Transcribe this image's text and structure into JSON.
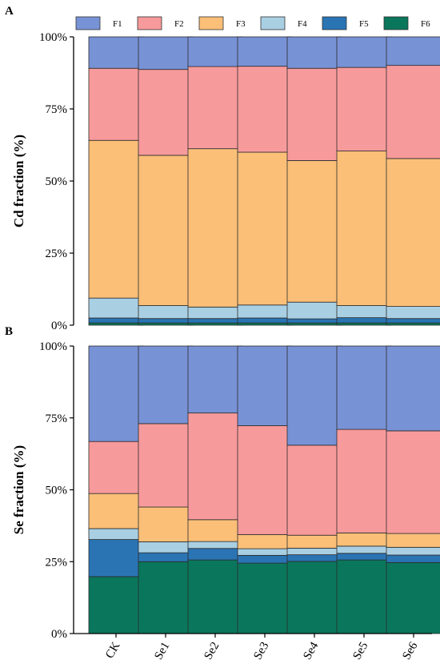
{
  "colors": {
    "F1": "#7892d6",
    "F2": "#f79a9b",
    "F3": "#fbbf78",
    "F4": "#a9cfe3",
    "F5": "#2a74b4",
    "F6": "#0a765c"
  },
  "legend": [
    "F1",
    "F2",
    "F3",
    "F4",
    "F5",
    "F6"
  ],
  "chart_data": [
    {
      "type": "bar",
      "stacked": true,
      "panel": "A",
      "ylabel": "Cd fraction (%)",
      "ylim": [
        0,
        100
      ],
      "yticks": [
        "0%",
        "25%",
        "50%",
        "75%",
        "100%"
      ],
      "categories": [
        "CK",
        "Se1",
        "Se2",
        "Se3",
        "Se4",
        "Se5",
        "Se6"
      ],
      "series": [
        {
          "name": "F6",
          "values": [
            0.8,
            0.8,
            0.8,
            0.8,
            0.8,
            0.8,
            0.8
          ]
        },
        {
          "name": "F5",
          "values": [
            1.7,
            1.5,
            1.5,
            1.7,
            1.4,
            1.8,
            1.5
          ]
        },
        {
          "name": "F4",
          "values": [
            6.9,
            4.5,
            4.0,
            4.5,
            5.8,
            4.2,
            4.2
          ]
        },
        {
          "name": "F3",
          "values": [
            54.7,
            52.1,
            54.9,
            53.0,
            49.1,
            53.6,
            51.3
          ]
        },
        {
          "name": "F2",
          "values": [
            25.0,
            29.8,
            28.5,
            29.8,
            32.0,
            29.0,
            32.3
          ]
        },
        {
          "name": "F1",
          "values": [
            10.9,
            11.3,
            10.3,
            10.2,
            10.9,
            10.6,
            9.9
          ]
        }
      ],
      "legend_position": "top",
      "grid": false
    },
    {
      "type": "bar",
      "stacked": true,
      "panel": "B",
      "ylabel": "Se fraction (%)",
      "ylim": [
        0,
        100
      ],
      "yticks": [
        "0%",
        "25%",
        "50%",
        "75%",
        "100%"
      ],
      "categories": [
        "CK",
        "Se1",
        "Se2",
        "Se3",
        "Se4",
        "Se5",
        "Se6"
      ],
      "series": [
        {
          "name": "F6",
          "values": [
            19.8,
            25.0,
            25.6,
            24.5,
            25.1,
            25.6,
            24.7
          ]
        },
        {
          "name": "F5",
          "values": [
            12.9,
            3.1,
            4.0,
            2.7,
            2.3,
            2.3,
            2.6
          ]
        },
        {
          "name": "F4",
          "values": [
            3.8,
            3.8,
            2.4,
            2.3,
            2.3,
            2.5,
            2.7
          ]
        },
        {
          "name": "F3",
          "values": [
            12.2,
            12.1,
            7.6,
            4.9,
            4.5,
            4.6,
            4.8
          ]
        },
        {
          "name": "F2",
          "values": [
            18.1,
            29.0,
            37.1,
            37.9,
            31.3,
            36.0,
            35.7
          ]
        },
        {
          "name": "F1",
          "values": [
            33.2,
            27.0,
            23.3,
            27.7,
            34.5,
            29.0,
            29.5
          ]
        }
      ],
      "grid": false
    }
  ]
}
